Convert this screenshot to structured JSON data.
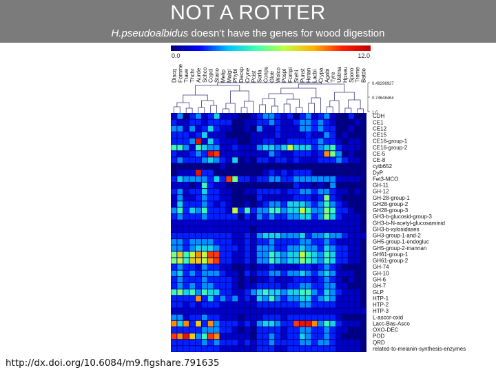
{
  "slide": {
    "title": "NOT A ROTTER",
    "subtitle_italic": "H.pseudoalbidus",
    "subtitle_rest": " doesn’t have the genes for wood digestion",
    "footer_link": "http://dx.doi.org/10.6084/m9.figshare.791635"
  },
  "colors": {
    "banner": "#7b7b7b",
    "heatmap_background": "#00008b",
    "colorbar_stops": [
      "#000080",
      "#0000ff",
      "#00c0ff",
      "#40ffb0",
      "#c0ff40",
      "#ffb000",
      "#ff2000",
      "#c00000"
    ]
  },
  "chart_data": {
    "type": "heatmap",
    "colorbar": {
      "min_label": "0.0",
      "max_label": "12.0",
      "range": [
        0,
        12
      ]
    },
    "dendrogram_scale_labels": [
      "0.49296927",
      "0.74648464",
      "1.0"
    ],
    "columns": [
      "Discq",
      "Fomme",
      "Trave",
      "Thchr",
      "Aurde",
      "Schco",
      "Copci",
      "Stano",
      "Melip",
      "Malgl",
      "Phybl",
      "Dacsp",
      "Cryne",
      "Pcist",
      "Serla",
      "Conpu",
      "Glotr",
      "Wolco",
      "Pospl",
      "Fompi",
      "Stehi",
      "Punst",
      "Hetan",
      "Lacbi",
      "Crypa",
      "Agabi",
      "Tyre",
      "Ustma",
      "Hpseu",
      "Sporo",
      "Treme",
      "Batde"
    ],
    "rows": [
      "CDH",
      "CE1",
      "CE12",
      "CE15",
      "CE16-group-1",
      "CE16-group-2",
      "CE-5",
      "CE-8",
      "cytb652",
      "DyP",
      "Fet3-MCO",
      "GH-11",
      "GH-12",
      "GH-28-group-1",
      "GH28-group-2",
      "GH28-group-3",
      "GH3-b-glucosid-group-3",
      "GH3-b-N-acetyl-glucosaminid",
      "GH3-b-xylosidases",
      "GH3-group-1-and-2",
      "GH5-group-1-endogluc",
      "GH5-group-2-mannan",
      "GH61-group-1",
      "GH61-group-2",
      "GH-74",
      "GH-10",
      "GH-6",
      "GH-7",
      "GLP",
      "HTP-1",
      "HTP-2",
      "HTP-3",
      "L-ascor-oxid",
      "Lacc-Bas-Asco",
      "OXO-DEC",
      "POD",
      "QRD",
      "related-to-melanin-synthesis-enzymes"
    ],
    "values": [
      [
        1,
        3,
        0,
        2,
        3,
        1,
        2,
        4,
        1,
        1,
        1,
        0,
        0,
        1,
        2,
        3,
        3,
        2,
        1,
        2,
        0,
        2,
        3,
        1,
        2,
        3,
        1,
        0,
        0,
        2,
        0,
        0
      ],
      [
        2,
        1,
        1,
        2,
        2,
        1,
        2,
        2,
        2,
        2,
        0,
        0,
        1,
        1,
        2,
        2,
        3,
        2,
        1,
        1,
        2,
        3,
        3,
        2,
        3,
        2,
        1,
        0,
        0,
        0,
        1,
        0
      ],
      [
        3,
        3,
        1,
        3,
        1,
        2,
        4,
        2,
        1,
        1,
        0,
        0,
        1,
        0,
        3,
        1,
        1,
        2,
        1,
        1,
        1,
        3,
        3,
        2,
        3,
        2,
        2,
        0,
        0,
        1,
        0,
        0
      ],
      [
        2,
        2,
        2,
        1,
        2,
        4,
        1,
        1,
        1,
        0,
        0,
        0,
        0,
        1,
        1,
        1,
        1,
        2,
        1,
        1,
        1,
        1,
        2,
        1,
        1,
        3,
        2,
        0,
        1,
        0,
        0,
        0
      ],
      [
        2,
        2,
        2,
        3,
        11,
        1,
        4,
        2,
        1,
        1,
        1,
        0,
        0,
        1,
        1,
        2,
        2,
        1,
        1,
        2,
        2,
        2,
        2,
        2,
        3,
        2,
        2,
        1,
        0,
        1,
        1,
        0
      ],
      [
        5,
        5,
        3,
        1,
        5,
        4,
        3,
        3,
        1,
        1,
        2,
        1,
        1,
        1,
        3,
        4,
        4,
        3,
        4,
        7,
        4,
        4,
        4,
        2,
        3,
        4,
        5,
        2,
        1,
        1,
        1,
        0
      ],
      [
        2,
        1,
        1,
        2,
        3,
        2,
        11,
        10,
        1,
        1,
        1,
        1,
        1,
        1,
        1,
        1,
        3,
        2,
        1,
        1,
        2,
        2,
        2,
        1,
        2,
        9,
        6,
        3,
        0,
        1,
        0,
        0
      ],
      [
        2,
        3,
        2,
        2,
        2,
        3,
        4,
        3,
        2,
        1,
        4,
        0,
        1,
        0,
        2,
        2,
        1,
        2,
        2,
        1,
        2,
        1,
        1,
        1,
        2,
        2,
        2,
        3,
        2,
        1,
        1,
        0
      ],
      [
        0,
        0,
        0,
        0,
        0,
        0,
        0,
        0,
        1,
        0,
        0,
        0,
        0,
        0,
        0,
        0,
        0,
        0,
        0,
        0,
        0,
        0,
        0,
        0,
        0,
        0,
        0,
        0,
        0,
        0,
        0,
        0
      ],
      [
        0,
        1,
        1,
        1,
        11,
        2,
        2,
        0,
        0,
        0,
        0,
        0,
        0,
        0,
        0,
        1,
        2,
        1,
        2,
        1,
        2,
        2,
        2,
        0,
        0,
        0,
        0,
        0,
        0,
        0,
        0,
        0
      ],
      [
        2,
        4,
        3,
        3,
        3,
        3,
        2,
        4,
        2,
        10,
        6,
        2,
        2,
        1,
        2,
        2,
        3,
        3,
        2,
        2,
        3,
        3,
        3,
        3,
        3,
        3,
        3,
        1,
        1,
        1,
        1,
        0
      ],
      [
        1,
        1,
        1,
        0,
        1,
        5,
        2,
        1,
        1,
        0,
        0,
        0,
        0,
        0,
        0,
        0,
        0,
        0,
        0,
        0,
        2,
        1,
        1,
        0,
        1,
        0,
        3,
        0,
        0,
        0,
        0,
        0
      ],
      [
        2,
        3,
        1,
        2,
        2,
        4,
        2,
        2,
        1,
        1,
        0,
        0,
        1,
        1,
        2,
        2,
        2,
        2,
        1,
        2,
        2,
        3,
        3,
        2,
        3,
        3,
        2,
        1,
        1,
        0,
        1,
        0
      ],
      [
        1,
        3,
        1,
        1,
        2,
        3,
        2,
        2,
        1,
        1,
        0,
        0,
        0,
        0,
        2,
        1,
        1,
        1,
        1,
        1,
        2,
        2,
        2,
        1,
        2,
        6,
        2,
        1,
        0,
        0,
        0,
        0
      ],
      [
        1,
        4,
        2,
        2,
        2,
        3,
        2,
        1,
        2,
        1,
        0,
        0,
        1,
        0,
        1,
        2,
        3,
        3,
        2,
        4,
        4,
        4,
        3,
        2,
        3,
        5,
        3,
        2,
        1,
        0,
        0,
        0
      ],
      [
        3,
        5,
        2,
        4,
        3,
        5,
        2,
        2,
        2,
        1,
        7,
        2,
        5,
        2,
        3,
        3,
        5,
        5,
        3,
        4,
        4,
        7,
        5,
        3,
        3,
        6,
        5,
        2,
        2,
        1,
        0,
        0
      ],
      [
        2,
        3,
        2,
        2,
        2,
        3,
        2,
        2,
        2,
        2,
        2,
        0,
        2,
        1,
        3,
        2,
        3,
        2,
        2,
        3,
        3,
        4,
        4,
        2,
        3,
        6,
        4,
        2,
        1,
        1,
        1,
        0
      ],
      [
        1,
        1,
        1,
        1,
        1,
        1,
        1,
        1,
        1,
        1,
        1,
        1,
        1,
        1,
        1,
        1,
        1,
        1,
        1,
        1,
        1,
        1,
        1,
        1,
        1,
        1,
        1,
        1,
        1,
        1,
        1,
        0
      ],
      [
        1,
        1,
        1,
        1,
        1,
        1,
        1,
        1,
        1,
        1,
        1,
        1,
        1,
        0,
        1,
        1,
        1,
        1,
        1,
        1,
        1,
        1,
        1,
        1,
        1,
        1,
        1,
        1,
        1,
        1,
        1,
        0
      ],
      [
        2,
        2,
        2,
        2,
        2,
        2,
        2,
        2,
        2,
        2,
        1,
        1,
        2,
        1,
        3,
        4,
        4,
        4,
        3,
        3,
        3,
        4,
        2,
        3,
        3,
        4,
        3,
        3,
        2,
        1,
        1,
        1
      ],
      [
        3,
        3,
        2,
        3,
        3,
        3,
        3,
        2,
        2,
        2,
        1,
        1,
        2,
        1,
        2,
        2,
        3,
        2,
        2,
        2,
        2,
        3,
        3,
        2,
        2,
        3,
        2,
        1,
        1,
        1,
        1,
        0
      ],
      [
        3,
        3,
        2,
        3,
        4,
        4,
        4,
        3,
        2,
        2,
        2,
        1,
        2,
        1,
        3,
        3,
        3,
        2,
        2,
        3,
        3,
        4,
        3,
        3,
        2,
        4,
        3,
        2,
        2,
        1,
        1,
        0
      ],
      [
        6,
        8,
        5,
        7,
        9,
        7,
        10,
        10,
        2,
        2,
        1,
        1,
        2,
        1,
        3,
        3,
        5,
        4,
        3,
        4,
        4,
        7,
        5,
        4,
        3,
        5,
        4,
        2,
        2,
        1,
        1,
        0
      ],
      [
        6,
        7,
        5,
        8,
        8,
        7,
        9,
        10,
        2,
        2,
        1,
        1,
        2,
        1,
        3,
        3,
        5,
        4,
        3,
        4,
        4,
        6,
        5,
        4,
        3,
        5,
        4,
        2,
        2,
        1,
        1,
        0
      ],
      [
        2,
        3,
        2,
        2,
        1,
        3,
        2,
        2,
        1,
        1,
        0,
        0,
        1,
        0,
        1,
        1,
        2,
        1,
        1,
        1,
        1,
        2,
        2,
        1,
        2,
        3,
        2,
        1,
        0,
        0,
        0,
        0
      ],
      [
        3,
        4,
        2,
        3,
        2,
        3,
        3,
        3,
        2,
        1,
        1,
        0,
        2,
        1,
        2,
        2,
        3,
        3,
        2,
        3,
        3,
        4,
        3,
        2,
        3,
        4,
        3,
        1,
        1,
        1,
        0,
        0
      ],
      [
        2,
        3,
        2,
        2,
        2,
        3,
        2,
        2,
        2,
        2,
        1,
        0,
        1,
        0,
        1,
        1,
        2,
        1,
        1,
        1,
        2,
        2,
        2,
        1,
        2,
        3,
        2,
        1,
        0,
        1,
        0,
        0
      ],
      [
        2,
        3,
        2,
        3,
        2,
        3,
        3,
        2,
        2,
        2,
        1,
        0,
        1,
        1,
        2,
        2,
        2,
        2,
        1,
        2,
        2,
        3,
        3,
        2,
        2,
        3,
        3,
        1,
        1,
        0,
        0,
        0
      ],
      [
        5,
        6,
        4,
        5,
        3,
        5,
        4,
        4,
        2,
        2,
        1,
        1,
        2,
        3,
        4,
        5,
        4,
        4,
        3,
        4,
        4,
        5,
        5,
        3,
        2,
        4,
        3,
        2,
        1,
        1,
        1,
        0
      ],
      [
        2,
        2,
        2,
        2,
        9,
        2,
        4,
        2,
        3,
        2,
        3,
        1,
        2,
        1,
        4,
        3,
        5,
        3,
        2,
        3,
        3,
        4,
        4,
        2,
        3,
        4,
        3,
        1,
        1,
        1,
        1,
        0
      ],
      [
        2,
        2,
        1,
        2,
        1,
        2,
        2,
        2,
        1,
        1,
        1,
        1,
        1,
        1,
        2,
        2,
        2,
        2,
        2,
        2,
        2,
        3,
        3,
        2,
        2,
        2,
        2,
        1,
        1,
        1,
        1,
        0
      ],
      [
        1,
        1,
        1,
        1,
        1,
        1,
        1,
        1,
        1,
        1,
        1,
        1,
        1,
        1,
        1,
        1,
        1,
        1,
        1,
        1,
        1,
        1,
        1,
        1,
        1,
        1,
        1,
        1,
        1,
        1,
        1,
        1
      ],
      [
        3,
        3,
        1,
        2,
        2,
        3,
        2,
        2,
        1,
        1,
        1,
        0,
        1,
        1,
        1,
        2,
        2,
        2,
        1,
        2,
        2,
        2,
        2,
        2,
        2,
        2,
        2,
        1,
        0,
        0,
        0,
        0
      ],
      [
        9,
        4,
        9,
        2,
        8,
        2,
        9,
        3,
        2,
        2,
        2,
        1,
        2,
        1,
        3,
        4,
        4,
        3,
        2,
        2,
        10,
        11,
        11,
        9,
        3,
        5,
        4,
        2,
        1,
        1,
        1,
        0
      ],
      [
        2,
        2,
        2,
        2,
        2,
        3,
        3,
        3,
        2,
        2,
        1,
        0,
        1,
        0,
        2,
        2,
        2,
        2,
        1,
        2,
        2,
        3,
        3,
        2,
        2,
        3,
        2,
        1,
        1,
        0,
        0,
        0
      ],
      [
        10,
        9,
        11,
        8,
        3,
        5,
        10,
        9,
        1,
        1,
        1,
        1,
        1,
        0,
        2,
        2,
        3,
        2,
        1,
        2,
        2,
        4,
        3,
        2,
        2,
        3,
        2,
        1,
        0,
        0,
        0,
        0
      ],
      [
        2,
        2,
        2,
        2,
        2,
        3,
        2,
        3,
        2,
        2,
        2,
        1,
        2,
        1,
        2,
        2,
        3,
        2,
        2,
        2,
        2,
        3,
        3,
        2,
        3,
        3,
        2,
        1,
        1,
        1,
        1,
        0
      ],
      [
        2,
        2,
        2,
        2,
        2,
        2,
        2,
        2,
        1,
        1,
        1,
        1,
        1,
        1,
        2,
        2,
        2,
        1,
        1,
        2,
        2,
        2,
        2,
        2,
        2,
        2,
        2,
        1,
        1,
        1,
        1,
        0
      ]
    ]
  }
}
